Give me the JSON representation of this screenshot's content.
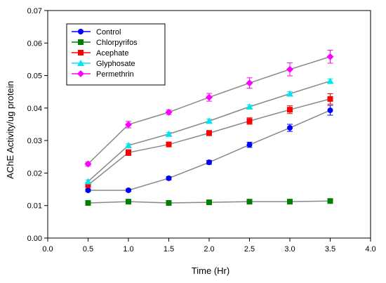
{
  "chart_data": {
    "type": "line",
    "xlabel": "Time (Hr)",
    "ylabel": "AChE Activity/ug protein",
    "xlim": [
      0.0,
      4.0
    ],
    "ylim": [
      0.0,
      0.07
    ],
    "x_ticks": [
      "0.0",
      "0.5",
      "1.0",
      "1.5",
      "2.0",
      "2.5",
      "3.0",
      "3.5",
      "4.0"
    ],
    "y_ticks": [
      "0.00",
      "0.01",
      "0.02",
      "0.03",
      "0.04",
      "0.05",
      "0.06",
      "0.07"
    ],
    "grid": false,
    "legend_position": "top-left",
    "x": [
      0.5,
      1.0,
      1.5,
      2.0,
      2.5,
      3.0,
      3.5
    ],
    "series": [
      {
        "name": "Control",
        "color": "#0000ff",
        "marker": "circle",
        "values": [
          0.0147,
          0.0147,
          0.0184,
          0.0233,
          0.0287,
          0.0339,
          0.0393
        ],
        "errors": [
          0.0004,
          0.0004,
          0.0005,
          0.0006,
          0.0008,
          0.0011,
          0.0015
        ]
      },
      {
        "name": "Chlorpyrifos",
        "color": "#008000",
        "marker": "square",
        "values": [
          0.0108,
          0.0112,
          0.0108,
          0.011,
          0.0112,
          0.0112,
          0.0114
        ],
        "errors": [
          0.0003,
          0.0004,
          0.0003,
          0.0003,
          0.0003,
          0.0003,
          0.0004
        ]
      },
      {
        "name": "Acephate",
        "color": "#ff0000",
        "marker": "square",
        "values": [
          0.0163,
          0.0263,
          0.0288,
          0.0323,
          0.036,
          0.0395,
          0.0428
        ],
        "errors": [
          0.0005,
          0.0009,
          0.0007,
          0.0008,
          0.001,
          0.0012,
          0.0016
        ]
      },
      {
        "name": "Glyphosate",
        "color": "#00e5ee",
        "marker": "triangle",
        "values": [
          0.0174,
          0.0285,
          0.032,
          0.036,
          0.0404,
          0.0444,
          0.0483
        ],
        "errors": [
          0.0005,
          0.0005,
          0.0005,
          0.0006,
          0.0006,
          0.0006,
          0.0007
        ]
      },
      {
        "name": "Permethrin",
        "color": "#ff00ff",
        "marker": "diamond",
        "values": [
          0.0228,
          0.0349,
          0.0387,
          0.0433,
          0.0477,
          0.0519,
          0.0558
        ],
        "errors": [
          0.0006,
          0.001,
          0.0007,
          0.0012,
          0.0016,
          0.002,
          0.002
        ]
      }
    ]
  }
}
